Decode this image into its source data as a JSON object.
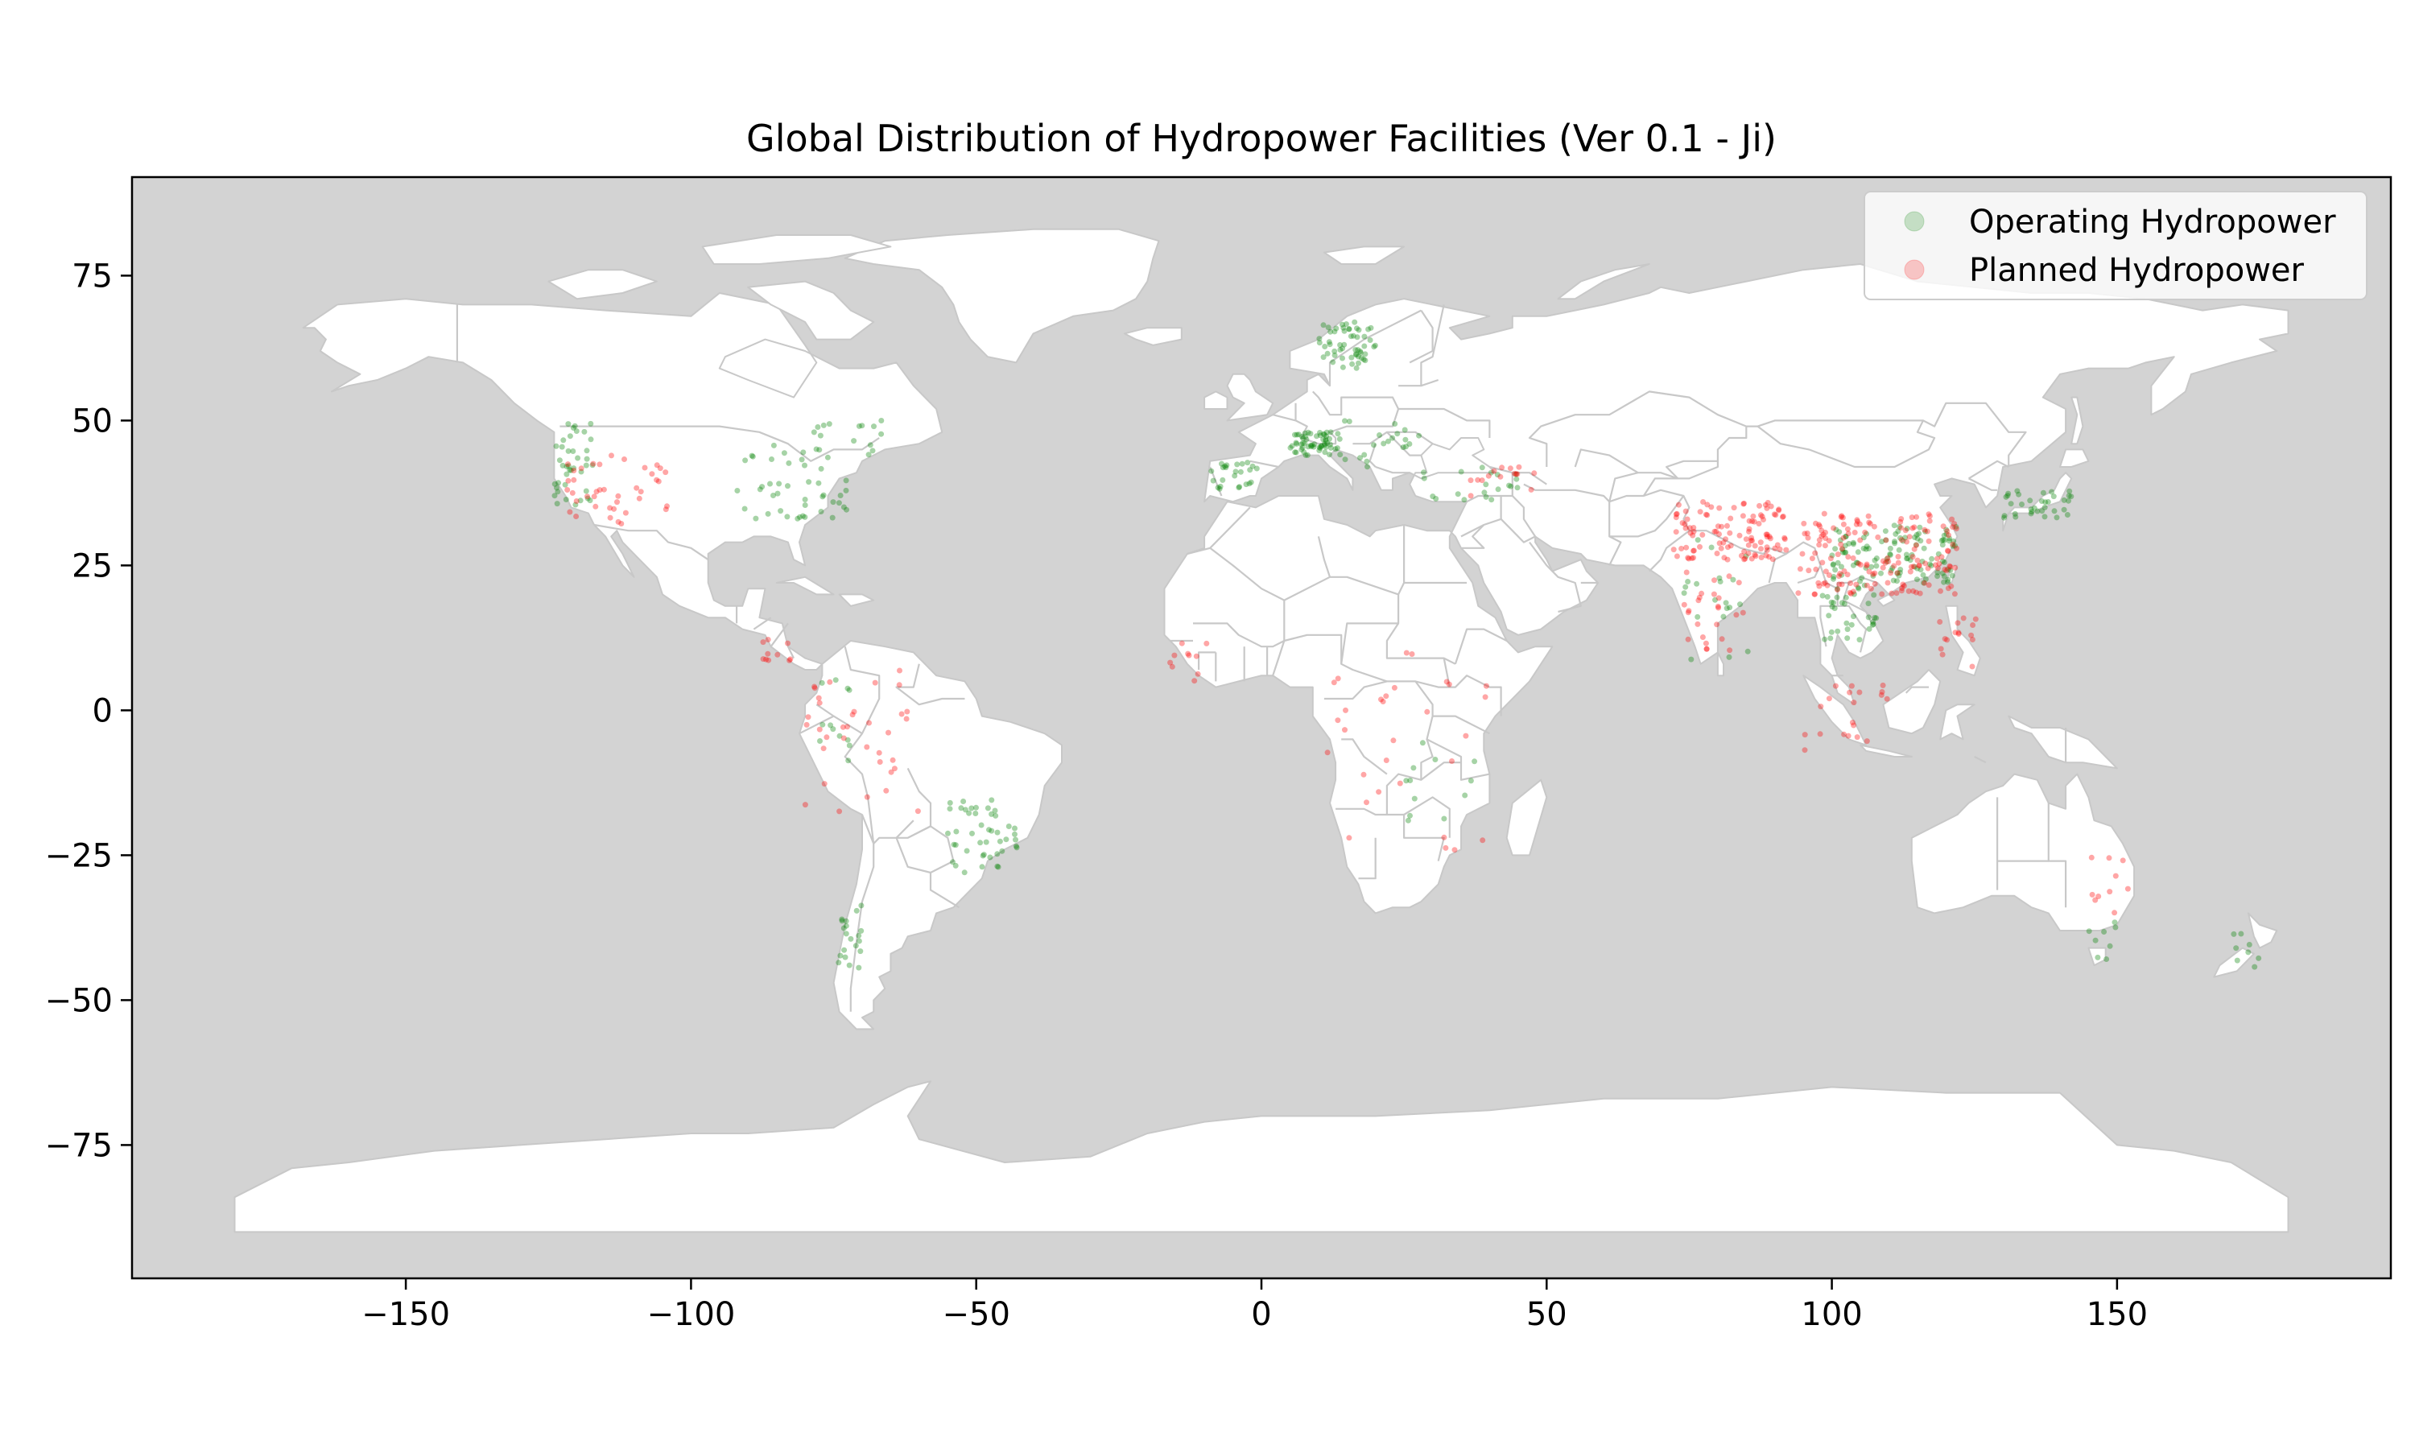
{
  "chart_data": {
    "type": "scatter",
    "title": "Global Distribution of Hydropower Facilities (Ver 0.1 - Ji)",
    "xlabel": "",
    "ylabel": "",
    "xlim": [
      -198,
      198
    ],
    "ylim": [
      -98,
      92
    ],
    "xticks": [
      -150,
      -100,
      -50,
      0,
      50,
      100,
      150
    ],
    "xtick_labels": [
      "−150",
      "−100",
      "−50",
      "0",
      "50",
      "100",
      "150"
    ],
    "yticks": [
      75,
      50,
      25,
      0,
      -25,
      -50,
      -75
    ],
    "ytick_labels": [
      "75",
      "50",
      "25",
      "0",
      "−25",
      "−50",
      "−75"
    ],
    "grid": false,
    "legend_position": "top-right",
    "colors": {
      "ocean": "#d3d3d3",
      "land": "#ffffff",
      "borders": "#c8c8c8",
      "operating": "#008000",
      "planned": "#ff0000"
    },
    "series": [
      {
        "name": "Operating Hydropower",
        "color": "#008000",
        "clusters": [
          {
            "lon": [
              10,
              20
            ],
            "lat": [
              59,
              67
            ],
            "n": 55
          },
          {
            "lon": [
              5,
              14
            ],
            "lat": [
              44,
              48
            ],
            "n": 60
          },
          {
            "lon": [
              -9,
              0
            ],
            "lat": [
              38,
              43
            ],
            "n": 25
          },
          {
            "lon": [
              14,
              28
            ],
            "lat": [
              42,
              50
            ],
            "n": 20
          },
          {
            "lon": [
              28,
              45
            ],
            "lat": [
              36,
              42
            ],
            "n": 20
          },
          {
            "lon": [
              -124,
              -117
            ],
            "lat": [
              35,
              50
            ],
            "n": 40
          },
          {
            "lon": [
              -92,
              -72
            ],
            "lat": [
              33,
              46
            ],
            "n": 45
          },
          {
            "lon": [
              -80,
              -65
            ],
            "lat": [
              44,
              50
            ],
            "n": 15
          },
          {
            "lon": [
              100,
              122
            ],
            "lat": [
              22,
              32
            ],
            "n": 120
          },
          {
            "lon": [
              98,
              108
            ],
            "lat": [
              12,
              22
            ],
            "n": 35
          },
          {
            "lon": [
              130,
              142
            ],
            "lat": [
              33,
              38
            ],
            "n": 35
          },
          {
            "lon": [
              74,
              86
            ],
            "lat": [
              8,
              30
            ],
            "n": 20
          },
          {
            "lon": [
              -55,
              -42
            ],
            "lat": [
              -28,
              -15
            ],
            "n": 45
          },
          {
            "lon": [
              -75,
              -70
            ],
            "lat": [
              -45,
              -33
            ],
            "n": 20
          },
          {
            "lon": [
              -78,
              -72
            ],
            "lat": [
              -10,
              7
            ],
            "n": 12
          },
          {
            "lon": [
              25,
              38
            ],
            "lat": [
              -20,
              -5
            ],
            "n": 12
          },
          {
            "lon": [
              145,
              150
            ],
            "lat": [
              -43,
              -35
            ],
            "n": 8
          },
          {
            "lon": [
              170,
              176
            ],
            "lat": [
              -45,
              -38
            ],
            "n": 8
          }
        ]
      },
      {
        "name": "Planned Hydropower",
        "color": "#ff0000",
        "clusters": [
          {
            "lon": [
              72,
              92
            ],
            "lat": [
              26,
              36
            ],
            "n": 110
          },
          {
            "lon": [
              94,
              122
            ],
            "lat": [
              20,
              34
            ],
            "n": 160
          },
          {
            "lon": [
              74,
              85
            ],
            "lat": [
              10,
              24
            ],
            "n": 25
          },
          {
            "lon": [
              95,
              110
            ],
            "lat": [
              -8,
              5
            ],
            "n": 20
          },
          {
            "lon": [
              118,
              126
            ],
            "lat": [
              7,
              18
            ],
            "n": 15
          },
          {
            "lon": [
              -122,
              -104
            ],
            "lat": [
              32,
              44
            ],
            "n": 40
          },
          {
            "lon": [
              -80,
              -60
            ],
            "lat": [
              -20,
              8
            ],
            "n": 35
          },
          {
            "lon": [
              -88,
              -82
            ],
            "lat": [
              8,
              15
            ],
            "n": 10
          },
          {
            "lon": [
              10,
              40
            ],
            "lat": [
              -25,
              10
            ],
            "n": 30
          },
          {
            "lon": [
              -16,
              -8
            ],
            "lat": [
              5,
              12
            ],
            "n": 10
          },
          {
            "lon": [
              36,
              48
            ],
            "lat": [
              37,
              42
            ],
            "n": 15
          },
          {
            "lon": [
              145,
              153
            ],
            "lat": [
              -35,
              -25
            ],
            "n": 10
          }
        ]
      }
    ]
  }
}
